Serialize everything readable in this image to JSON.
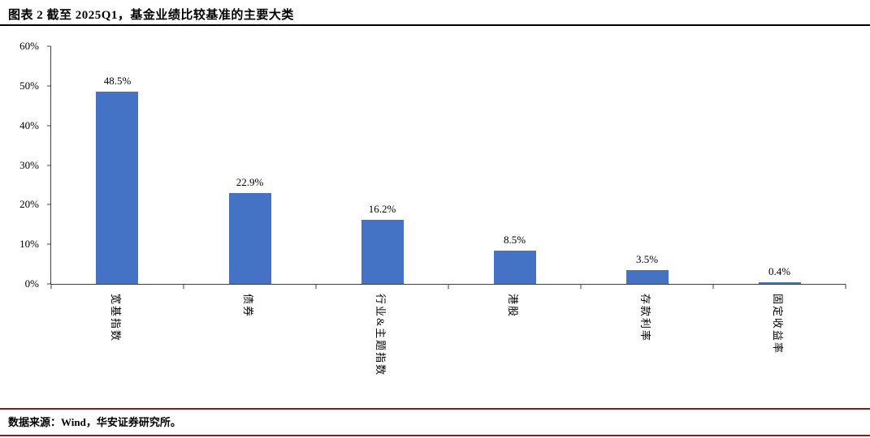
{
  "title": "图表 2 截至 2025Q1，基金业绩比较基准的主要大类",
  "footer": {
    "source": "数据来源：Wind，华安证券研究所。"
  },
  "colors": {
    "bar": "#4472C4",
    "axis": "#404040",
    "title_rule": "#000000",
    "footer_rule": "#8B1A1A"
  },
  "chart_data": {
    "type": "bar",
    "title": "图表 2 截至 2025Q1，基金业绩比较基准的主要大类",
    "categories": [
      "宽基指数",
      "债券",
      "行业&主题指数",
      "港股",
      "存款利率",
      "固定收益率"
    ],
    "values": [
      48.5,
      22.9,
      16.2,
      8.5,
      3.5,
      0.4
    ],
    "value_labels": [
      "48.5%",
      "22.9%",
      "16.2%",
      "8.5%",
      "3.5%",
      "0.4%"
    ],
    "y_ticks": [
      "0%",
      "10%",
      "20%",
      "30%",
      "40%",
      "50%",
      "60%"
    ],
    "ylim": [
      0,
      60
    ],
    "xlabel": "",
    "ylabel": "",
    "grid": false,
    "legend": false,
    "bar_color": "#4472C4"
  }
}
